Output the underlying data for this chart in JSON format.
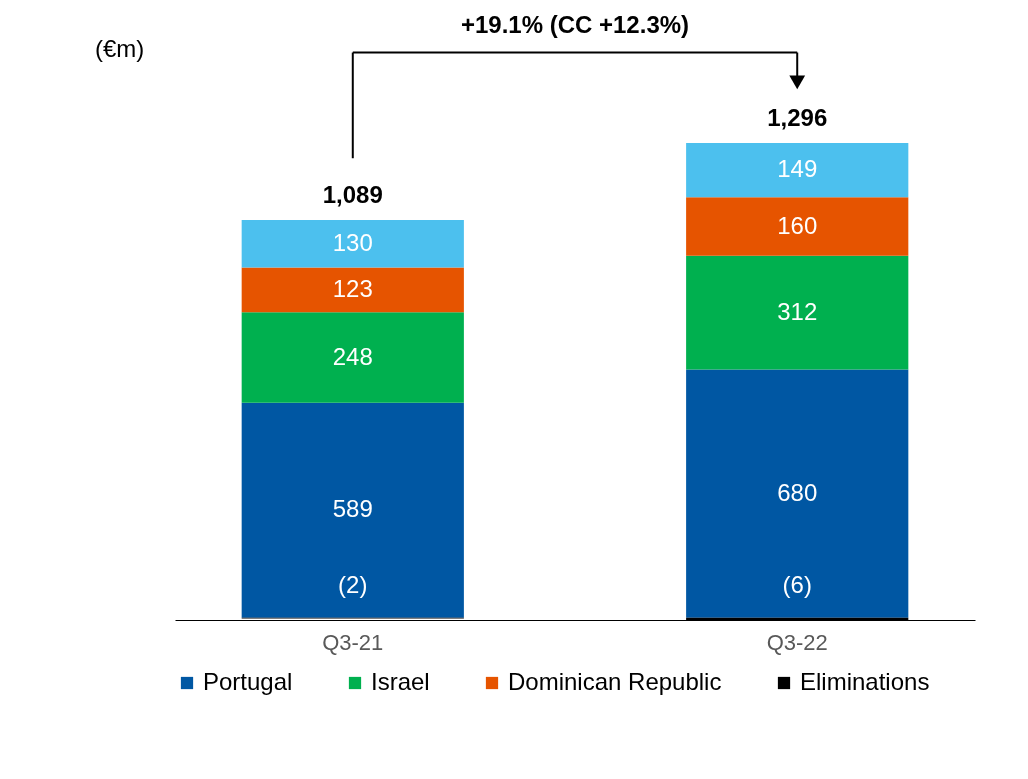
{
  "chart_data": {
    "type": "bar",
    "stacked": true,
    "title": "+19.1% (CC +12.3%)",
    "ylabel": "(€m)",
    "categories": [
      "Q3-21",
      "Q3-22"
    ],
    "series": [
      {
        "name": "Portugal",
        "color": "#0057a3",
        "values": [
          589,
          680
        ],
        "value_labels": [
          "589",
          "680"
        ]
      },
      {
        "name": "Israel",
        "color": "#00b04f",
        "values": [
          248,
          312
        ],
        "value_labels": [
          "248",
          "312"
        ]
      },
      {
        "name": "Dominican Republic",
        "color": "#e65400",
        "values": [
          123,
          160
        ],
        "value_labels": [
          "123",
          "160"
        ]
      },
      {
        "color": "#4cc0ee",
        "values": [
          130,
          149
        ],
        "value_labels": [
          "130",
          "149"
        ]
      },
      {
        "name": "Eliminations",
        "color": "#000000",
        "values": [
          -2,
          -6
        ],
        "value_labels": [
          "(2)",
          "(6)"
        ]
      }
    ],
    "totals": [
      "1,089",
      "1,296"
    ],
    "legend": "bottom",
    "grid": false
  }
}
